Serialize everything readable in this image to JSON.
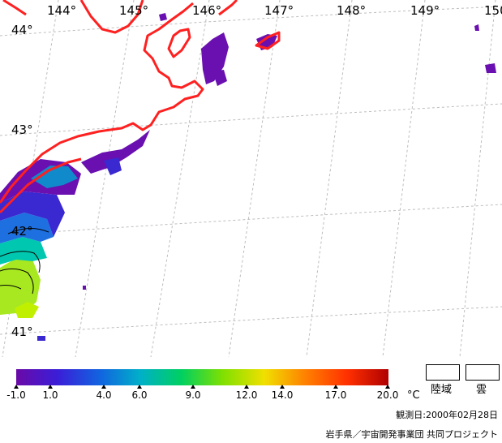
{
  "map": {
    "longitude_labels": [
      "144°",
      "145°",
      "146°",
      "147°",
      "148°",
      "149°",
      "150"
    ],
    "latitude_labels": [
      "44°",
      "43°",
      "42°",
      "41°"
    ],
    "coastline_color": "#ff2020",
    "grid_color": "#bdbdbd",
    "contour_color": "#000000"
  },
  "colorbar": {
    "ticks": [
      "-1.0",
      "1.0",
      "4.0",
      "6.0",
      "9.0",
      "12.0",
      "14.0",
      "17.0",
      "20.0"
    ],
    "unit": "°C",
    "stops": [
      "#6a0aa8",
      "#3a1ed8",
      "#1262e0",
      "#00b0c8",
      "#00d060",
      "#80e000",
      "#f0e000",
      "#ff8000",
      "#ff3000",
      "#b00000"
    ]
  },
  "legend": {
    "land_label": "陸域",
    "cloud_label": "雲"
  },
  "footer": {
    "observation_date": "観測日:2000年02月28日",
    "credit": "岩手県／宇宙開発事業団 共同プロジェクト"
  }
}
